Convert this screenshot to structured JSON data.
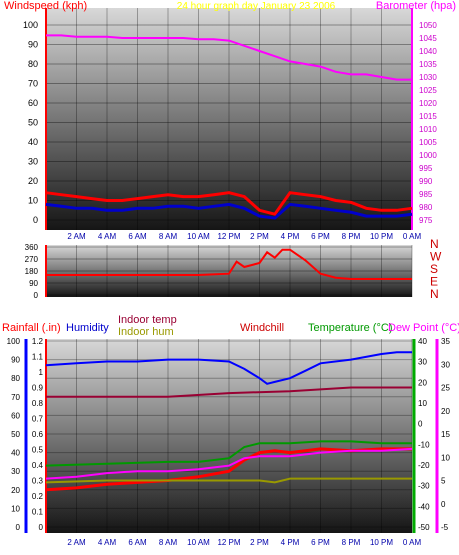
{
  "chart_data": [
    {
      "type": "line",
      "title": "24 hour graph day  January 23 2006",
      "ylabel_left": "Windspeed (kph)",
      "ylabel_right": "Barometer (hpa)",
      "x_ticks": [
        "2 AM",
        "4 AM",
        "6 AM",
        "8 AM",
        "10 AM",
        "12 PM",
        "2 PM",
        "4 PM",
        "6 PM",
        "8 PM",
        "10 PM",
        "0 AM"
      ],
      "x_range": [
        0,
        24
      ],
      "ylim_left": [
        0,
        100
      ],
      "yticks_left": [
        "0",
        "10",
        "20",
        "30",
        "40",
        "50",
        "60",
        "70",
        "80",
        "90",
        "100"
      ],
      "ylim_right": [
        975,
        1050
      ],
      "yticks_right": [
        "975",
        "980",
        "985",
        "990",
        "995",
        "1000",
        "1005",
        "1010",
        "1015",
        "1020",
        "1025",
        "1030",
        "1035",
        "1040",
        "1045",
        "1050"
      ],
      "series": [
        {
          "role": "barometer",
          "axis": "right",
          "color": "#ff00ff",
          "x": [
            0,
            1,
            2,
            3,
            4,
            5,
            6,
            7,
            8,
            9,
            10,
            11,
            12,
            13,
            14,
            15,
            16,
            17,
            18,
            19,
            20,
            21,
            22,
            23,
            24
          ],
          "y": [
            1046,
            1046,
            1045.5,
            1045.5,
            1045.5,
            1045,
            1045,
            1045,
            1045,
            1045,
            1044.5,
            1044.5,
            1044,
            1042,
            1040,
            1038,
            1036,
            1035,
            1034,
            1032,
            1031,
            1031,
            1030,
            1029,
            1029
          ]
        },
        {
          "role": "wind gust",
          "axis": "left",
          "color": "#ff0000",
          "x": [
            0,
            1,
            2,
            3,
            4,
            5,
            6,
            7,
            8,
            9,
            10,
            11,
            12,
            13,
            14,
            15,
            16,
            17,
            18,
            19,
            20,
            21,
            22,
            23,
            24
          ],
          "y": [
            14,
            13,
            12,
            11,
            10,
            10,
            11,
            12,
            13,
            12,
            12,
            13,
            14,
            12,
            5,
            3,
            14,
            13,
            12,
            10,
            9,
            6,
            5,
            5,
            6
          ]
        },
        {
          "role": "wind speed",
          "axis": "left",
          "color": "#0000cc",
          "x": [
            0,
            1,
            2,
            3,
            4,
            5,
            6,
            7,
            8,
            9,
            10,
            11,
            12,
            13,
            14,
            15,
            16,
            17,
            18,
            19,
            20,
            21,
            22,
            23,
            24
          ],
          "y": [
            8,
            7,
            6,
            6,
            5,
            5,
            6,
            6,
            7,
            7,
            6,
            7,
            8,
            6,
            2,
            1,
            8,
            7,
            6,
            5,
            4,
            2,
            2,
            2,
            3
          ]
        }
      ]
    },
    {
      "type": "line",
      "ylim": [
        0,
        360
      ],
      "yticks": [
        "0",
        "90",
        "180",
        "270",
        "360"
      ],
      "direction_labels": [
        "N",
        "W",
        "S",
        "E",
        "N"
      ],
      "series": [
        {
          "role": "wind direction",
          "color": "#ff0000",
          "x": [
            0,
            2,
            4,
            6,
            8,
            10,
            12,
            12.5,
            13,
            14,
            14.5,
            15,
            15.5,
            16,
            17,
            18,
            19,
            20,
            22,
            24
          ],
          "y": [
            150,
            150,
            150,
            150,
            150,
            150,
            160,
            250,
            210,
            240,
            320,
            280,
            340,
            340,
            260,
            160,
            130,
            120,
            120,
            120
          ]
        }
      ]
    },
    {
      "type": "line",
      "legend": [
        {
          "text": "Rainfall (.in)",
          "color": "#ff0000"
        },
        {
          "text": "Humidity",
          "color": "#0000cc"
        },
        {
          "text": "Indoor temp",
          "color": "#990033"
        },
        {
          "text": "Indoor hum",
          "color": "#999900"
        },
        {
          "text": "Windchill",
          "color": "#cc0000"
        },
        {
          "text": "Temperature (°C)",
          "color": "#009900"
        },
        {
          "text": "Dew Point (°C)",
          "color": "#ff00ff"
        }
      ],
      "x_ticks": [
        "2 AM",
        "4 AM",
        "6 AM",
        "8 AM",
        "10 AM",
        "12 PM",
        "2 PM",
        "4 PM",
        "6 PM",
        "8 PM",
        "10 PM",
        "0 AM"
      ],
      "axis_humidity": {
        "range": [
          0,
          100
        ],
        "ticks": [
          "0",
          "10",
          "20",
          "30",
          "40",
          "50",
          "60",
          "70",
          "80",
          "90",
          "100"
        ]
      },
      "axis_rain": {
        "range": [
          0,
          1.2
        ],
        "ticks": [
          "0",
          "0.1",
          "0.2",
          "0.3",
          "0.4",
          "0.5",
          "0.6",
          "0.7",
          "0.8",
          "0.9",
          "1",
          "1.1",
          "1.2"
        ]
      },
      "axis_temp": {
        "range": [
          -50,
          40
        ],
        "ticks": [
          "-50",
          "-40",
          "-30",
          "-20",
          "-10",
          "0",
          "10",
          "20",
          "30",
          "40"
        ]
      },
      "axis_dew": {
        "range": [
          -5,
          35
        ],
        "ticks": [
          "-5",
          "0",
          "5",
          "10",
          "15",
          "20",
          "25",
          "30",
          "35"
        ]
      },
      "series": [
        {
          "role": "humidity",
          "color": "#0000ff",
          "axis": "humidity",
          "x": [
            0,
            2,
            4,
            6,
            8,
            10,
            12,
            13,
            14,
            14.5,
            15,
            16,
            17,
            18,
            20,
            22,
            23,
            24
          ],
          "y": [
            87,
            88,
            89,
            89,
            90,
            90,
            89,
            85,
            80,
            77,
            78,
            80,
            84,
            88,
            90,
            93,
            94,
            94
          ]
        },
        {
          "role": "indoor temp",
          "color": "#990033",
          "axis": "humidity",
          "x": [
            0,
            4,
            8,
            12,
            16,
            20,
            24
          ],
          "y": [
            70,
            70,
            70,
            72,
            73,
            75,
            75
          ]
        },
        {
          "role": "temperature",
          "color": "#009900",
          "axis": "humidity",
          "x": [
            0,
            4,
            8,
            10,
            12,
            13,
            14,
            16,
            18,
            20,
            22,
            24
          ],
          "y": [
            33,
            34,
            35,
            35,
            37,
            43,
            45,
            45,
            46,
            46,
            45,
            45
          ]
        },
        {
          "role": "windchill",
          "color": "#ff0000",
          "axis": "humidity",
          "x": [
            0,
            2,
            4,
            6,
            8,
            10,
            12,
            13,
            14,
            15,
            16,
            18,
            20,
            22,
            24
          ],
          "y": [
            20,
            21,
            23,
            24,
            25,
            27,
            30,
            36,
            40,
            41,
            40,
            42,
            41,
            42,
            42
          ]
        },
        {
          "role": "dew point",
          "color": "#ff00ff",
          "axis": "humidity",
          "x": [
            0,
            2,
            4,
            6,
            8,
            10,
            12,
            13,
            14,
            16,
            18,
            20,
            22,
            24
          ],
          "y": [
            26,
            27,
            29,
            30,
            30,
            31,
            33,
            37,
            38,
            38,
            40,
            41,
            41,
            42
          ]
        },
        {
          "role": "indoor hum",
          "color": "#999900",
          "axis": "humidity",
          "x": [
            0,
            4,
            8,
            12,
            14,
            15,
            16,
            18,
            20,
            22,
            24
          ],
          "y": [
            24,
            25,
            25,
            25,
            25,
            24,
            26,
            26,
            26,
            26,
            26
          ]
        }
      ]
    }
  ]
}
